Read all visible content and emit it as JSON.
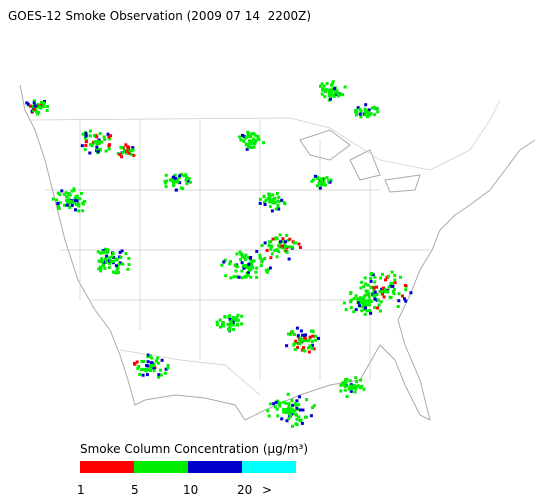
{
  "title": "GOES-12 Smoke Observation (2009 07 14  2200Z)",
  "legend": {
    "title": "Smoke Column Concentration (μg/m³)",
    "colors": [
      "#ff0000",
      "#00ee00",
      "#0000cc",
      "#00ffff"
    ],
    "labels": [
      "1",
      "5",
      "10",
      "20",
      ">"
    ]
  }
}
